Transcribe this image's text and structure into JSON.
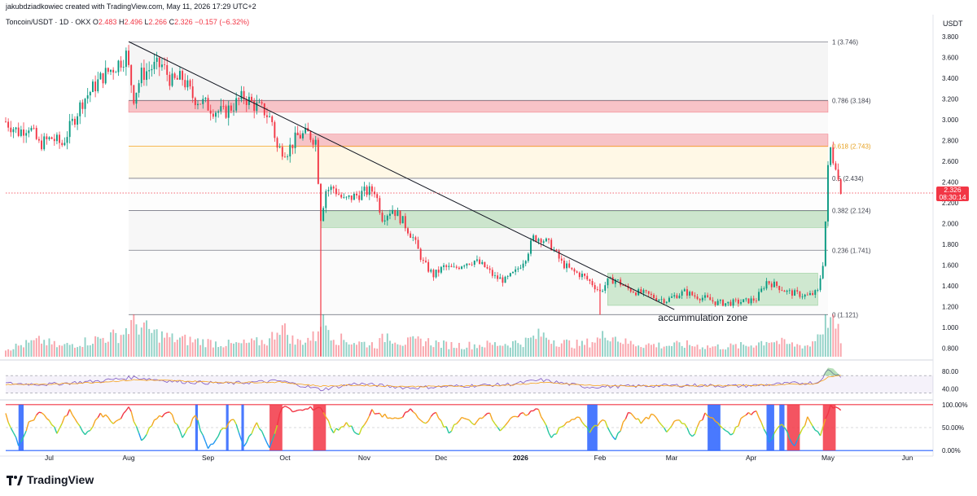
{
  "header": {
    "credit": "jakubdziadkowiec created with TradingView.com, May 11, 2026 17:29 UTC+2",
    "symbol": "Toncoin/USDT · 1D · OKX",
    "o_label": "O",
    "o_value": "2.483",
    "h_label": "H",
    "h_value": "2.496",
    "l_label": "L",
    "l_value": "2.266",
    "c_label": "C",
    "c_value": "2.326",
    "change": "−0.157 (−6.32%)"
  },
  "price_axis": {
    "unit": "USDT"
  },
  "current_price": {
    "value": "2.326",
    "countdown": "08:30:14"
  },
  "brand": {
    "name": "TradingView"
  },
  "colors": {
    "up": "#089981",
    "down": "#f23645",
    "resistance": "#f23645",
    "support": "#4caf50",
    "accent": "#2962ff"
  },
  "chart_data": [
    {
      "type": "candlestick",
      "pair": "Toncoin/USDT",
      "timeframe": "1D",
      "exchange": "OKX",
      "ylim": [
        0.7,
        3.9
      ],
      "y_ticks": [
        "3.800",
        "3.600",
        "3.400",
        "3.200",
        "3.000",
        "2.800",
        "2.600",
        "2.400",
        "2.200",
        "2.000",
        "1.800",
        "1.600",
        "1.400",
        "1.200",
        "1.000",
        "0.800"
      ],
      "y_tick_values": [
        3.8,
        3.6,
        3.4,
        3.2,
        3.0,
        2.8,
        2.6,
        2.4,
        2.2,
        2.0,
        1.8,
        1.6,
        1.4,
        1.2,
        1.0,
        0.8
      ],
      "x_ticks": [
        "Jul",
        "Aug",
        "Sep",
        "Oct",
        "Nov",
        "Dec",
        "2026",
        "Feb",
        "Mar",
        "Apr",
        "May",
        "Jun"
      ],
      "x_tick_days": [
        0,
        31,
        62,
        92,
        123,
        153,
        184,
        215,
        243,
        274,
        304,
        335
      ],
      "x_range_days": [
        -17,
        345
      ],
      "price_path": [
        [
          -17,
          2.98
        ],
        [
          -12,
          2.88
        ],
        [
          -8,
          2.94
        ],
        [
          -4,
          2.76
        ],
        [
          1,
          2.82
        ],
        [
          5,
          2.76
        ],
        [
          9,
          2.97
        ],
        [
          13,
          3.18
        ],
        [
          17,
          3.3
        ],
        [
          21,
          3.42
        ],
        [
          26,
          3.52
        ],
        [
          30,
          3.62
        ],
        [
          33,
          3.22
        ],
        [
          36,
          3.43
        ],
        [
          40,
          3.5
        ],
        [
          44,
          3.52
        ],
        [
          48,
          3.36
        ],
        [
          52,
          3.4
        ],
        [
          56,
          3.22
        ],
        [
          60,
          3.16
        ],
        [
          64,
          3.1
        ],
        [
          68,
          3.06
        ],
        [
          72,
          3.14
        ],
        [
          76,
          3.22
        ],
        [
          80,
          3.14
        ],
        [
          84,
          3.08
        ],
        [
          87,
          2.98
        ],
        [
          89,
          2.72
        ],
        [
          93,
          2.7
        ],
        [
          97,
          2.84
        ],
        [
          101,
          2.86
        ],
        [
          104,
          2.8
        ],
        [
          106,
          2.06
        ],
        [
          108,
          2.32
        ],
        [
          111,
          2.34
        ],
        [
          115,
          2.22
        ],
        [
          119,
          2.26
        ],
        [
          123,
          2.3
        ],
        [
          127,
          2.32
        ],
        [
          130,
          2.06
        ],
        [
          134,
          2.14
        ],
        [
          138,
          2.02
        ],
        [
          142,
          1.86
        ],
        [
          146,
          1.62
        ],
        [
          150,
          1.5
        ],
        [
          154,
          1.58
        ],
        [
          158,
          1.56
        ],
        [
          162,
          1.62
        ],
        [
          166,
          1.64
        ],
        [
          170,
          1.58
        ],
        [
          174,
          1.48
        ],
        [
          178,
          1.45
        ],
        [
          182,
          1.53
        ],
        [
          186,
          1.68
        ],
        [
          189,
          1.86
        ],
        [
          192,
          1.86
        ],
        [
          196,
          1.78
        ],
        [
          200,
          1.62
        ],
        [
          204,
          1.54
        ],
        [
          208,
          1.5
        ],
        [
          212,
          1.42
        ],
        [
          215,
          1.34
        ],
        [
          218,
          1.44
        ],
        [
          221,
          1.46
        ],
        [
          225,
          1.38
        ],
        [
          229,
          1.34
        ],
        [
          233,
          1.32
        ],
        [
          237,
          1.28
        ],
        [
          241,
          1.26
        ],
        [
          244,
          1.3
        ],
        [
          248,
          1.34
        ],
        [
          252,
          1.3
        ],
        [
          256,
          1.28
        ],
        [
          260,
          1.24
        ],
        [
          264,
          1.23
        ],
        [
          268,
          1.24
        ],
        [
          272,
          1.25
        ],
        [
          276,
          1.27
        ],
        [
          280,
          1.44
        ],
        [
          284,
          1.4
        ],
        [
          288,
          1.34
        ],
        [
          292,
          1.32
        ],
        [
          296,
          1.3
        ],
        [
          300,
          1.34
        ],
        [
          302,
          1.62
        ],
        [
          303,
          2.02
        ],
        [
          304,
          2.52
        ],
        [
          305,
          2.72
        ],
        [
          306,
          2.62
        ],
        [
          307,
          2.58
        ],
        [
          308,
          2.42
        ],
        [
          309,
          2.33
        ]
      ],
      "volume_path": [
        [
          -17,
          0.2
        ],
        [
          -10,
          0.3
        ],
        [
          -3,
          0.4
        ],
        [
          4,
          0.25
        ],
        [
          12,
          0.35
        ],
        [
          20,
          0.45
        ],
        [
          28,
          0.55
        ],
        [
          33,
          0.85
        ],
        [
          40,
          0.6
        ],
        [
          48,
          0.45
        ],
        [
          56,
          0.4
        ],
        [
          64,
          0.35
        ],
        [
          72,
          0.3
        ],
        [
          80,
          0.35
        ],
        [
          86,
          0.4
        ],
        [
          90,
          0.8
        ],
        [
          96,
          0.35
        ],
        [
          104,
          0.5
        ],
        [
          106,
          1.0
        ],
        [
          112,
          0.45
        ],
        [
          120,
          0.35
        ],
        [
          128,
          0.3
        ],
        [
          132,
          0.55
        ],
        [
          138,
          0.35
        ],
        [
          146,
          0.4
        ],
        [
          154,
          0.3
        ],
        [
          162,
          0.28
        ],
        [
          170,
          0.3
        ],
        [
          178,
          0.32
        ],
        [
          186,
          0.38
        ],
        [
          192,
          0.55
        ],
        [
          200,
          0.35
        ],
        [
          208,
          0.3
        ],
        [
          215,
          0.45
        ],
        [
          218,
          0.6
        ],
        [
          225,
          0.35
        ],
        [
          233,
          0.3
        ],
        [
          241,
          0.28
        ],
        [
          249,
          0.3
        ],
        [
          257,
          0.25
        ],
        [
          265,
          0.25
        ],
        [
          273,
          0.28
        ],
        [
          281,
          0.42
        ],
        [
          289,
          0.3
        ],
        [
          297,
          0.28
        ],
        [
          302,
          0.75
        ],
        [
          304,
          1.0
        ],
        [
          306,
          0.85
        ],
        [
          308,
          0.6
        ],
        [
          309,
          0.45
        ]
      ],
      "trendline": {
        "from": [
          31,
          3.75
        ],
        "to": [
          244,
          1.17
        ]
      },
      "fibonacci": {
        "range_days": [
          31,
          304
        ],
        "levels": [
          {
            "ratio": "1",
            "value": 3.746,
            "label": "1 (3.746)"
          },
          {
            "ratio": "0.786",
            "value": 3.184,
            "label": "0.786 (3.184)"
          },
          {
            "ratio": "0.618",
            "value": 2.743,
            "label": "0.618 (2.743)"
          },
          {
            "ratio": "0.5",
            "value": 2.434,
            "label": "0.5 (2.434)"
          },
          {
            "ratio": "0.382",
            "value": 2.124,
            "label": "0.382 (2.124)"
          },
          {
            "ratio": "0.236",
            "value": 1.741,
            "label": "0.236 (1.741)"
          },
          {
            "ratio": "0",
            "value": 1.121,
            "label": "0 (1.121)"
          }
        ]
      },
      "zones": [
        {
          "kind": "resistance",
          "days": [
            31,
            304
          ],
          "low": 3.07,
          "high": 3.18
        },
        {
          "kind": "resistance",
          "days": [
            96,
            304
          ],
          "low": 2.74,
          "high": 2.86
        },
        {
          "kind": "support",
          "days": [
            106,
            304
          ],
          "low": 1.96,
          "high": 2.12
        },
        {
          "kind": "support",
          "days": [
            218,
            300
          ],
          "low": 1.21,
          "high": 1.52
        }
      ],
      "annotations": [
        {
          "text": "accummulation zone",
          "at": [
            244,
            1.06
          ]
        }
      ]
    },
    {
      "type": "line",
      "panel": "oscillator-1",
      "y_ticks": [
        "80.00",
        "40.00"
      ],
      "y_tick_values": [
        80,
        40
      ],
      "ylim": [
        20,
        100
      ],
      "bands": [
        70,
        30
      ],
      "series": [
        {
          "color": "#7e57c2",
          "x": [
            -17,
            0,
            20,
            33,
            50,
            70,
            90,
            106,
            120,
            140,
            160,
            180,
            192,
            210,
            230,
            250,
            270,
            290,
            300,
            304,
            309
          ],
          "values": [
            52,
            50,
            58,
            66,
            56,
            52,
            58,
            38,
            52,
            42,
            46,
            50,
            60,
            44,
            46,
            48,
            46,
            52,
            54,
            82,
            68
          ]
        },
        {
          "color": "#f7a21b",
          "x": [
            -17,
            0,
            20,
            33,
            50,
            70,
            90,
            106,
            120,
            140,
            160,
            180,
            192,
            210,
            230,
            250,
            270,
            290,
            300,
            304,
            309
          ],
          "values": [
            50,
            50,
            55,
            60,
            58,
            54,
            55,
            46,
            48,
            45,
            46,
            48,
            54,
            48,
            46,
            47,
            47,
            50,
            52,
            66,
            70
          ]
        }
      ]
    },
    {
      "type": "line",
      "panel": "oscillator-2",
      "y_ticks": [
        "100.00%",
        "50.00%",
        "0.00%"
      ],
      "y_tick_values": [
        100,
        50,
        0
      ],
      "ylim": [
        -5,
        105
      ],
      "signals": [
        {
          "kind": "low",
          "days": [
            -12,
            -10
          ]
        },
        {
          "kind": "low",
          "days": [
            57,
            58
          ]
        },
        {
          "kind": "low",
          "days": [
            69,
            70
          ]
        },
        {
          "kind": "low",
          "days": [
            75,
            76
          ]
        },
        {
          "kind": "high",
          "days": [
            86,
            91
          ]
        },
        {
          "kind": "high",
          "days": [
            103,
            108
          ]
        },
        {
          "kind": "low",
          "days": [
            210,
            214
          ]
        },
        {
          "kind": "low",
          "days": [
            257,
            262
          ]
        },
        {
          "kind": "low",
          "days": [
            280,
            283
          ]
        },
        {
          "kind": "low",
          "days": [
            285,
            287
          ]
        },
        {
          "kind": "high",
          "days": [
            288,
            293
          ]
        },
        {
          "kind": "high",
          "days": [
            302,
            307
          ]
        }
      ],
      "series": [
        {
          "color": "gradient",
          "x": [
            -17,
            -12,
            -8,
            -3,
            3,
            8,
            14,
            20,
            26,
            31,
            36,
            42,
            47,
            52,
            57,
            62,
            67,
            72,
            76,
            81,
            86,
            91,
            96,
            101,
            106,
            111,
            116,
            121,
            126,
            131,
            136,
            141,
            146,
            151,
            156,
            161,
            166,
            171,
            176,
            181,
            186,
            191,
            196,
            201,
            206,
            211,
            216,
            221,
            226,
            231,
            236,
            241,
            246,
            251,
            256,
            261,
            266,
            271,
            276,
            281,
            286,
            291,
            296,
            301,
            305,
            309
          ],
          "values": [
            80,
            10,
            60,
            85,
            40,
            90,
            30,
            80,
            60,
            95,
            20,
            70,
            85,
            30,
            75,
            5,
            40,
            70,
            10,
            60,
            5,
            95,
            85,
            90,
            95,
            40,
            60,
            35,
            85,
            75,
            65,
            90,
            60,
            80,
            40,
            70,
            60,
            85,
            45,
            70,
            80,
            90,
            30,
            55,
            75,
            40,
            70,
            20,
            85,
            60,
            80,
            45,
            70,
            30,
            80,
            60,
            30,
            75,
            85,
            20,
            60,
            10,
            70,
            35,
            95,
            92
          ]
        }
      ]
    }
  ]
}
